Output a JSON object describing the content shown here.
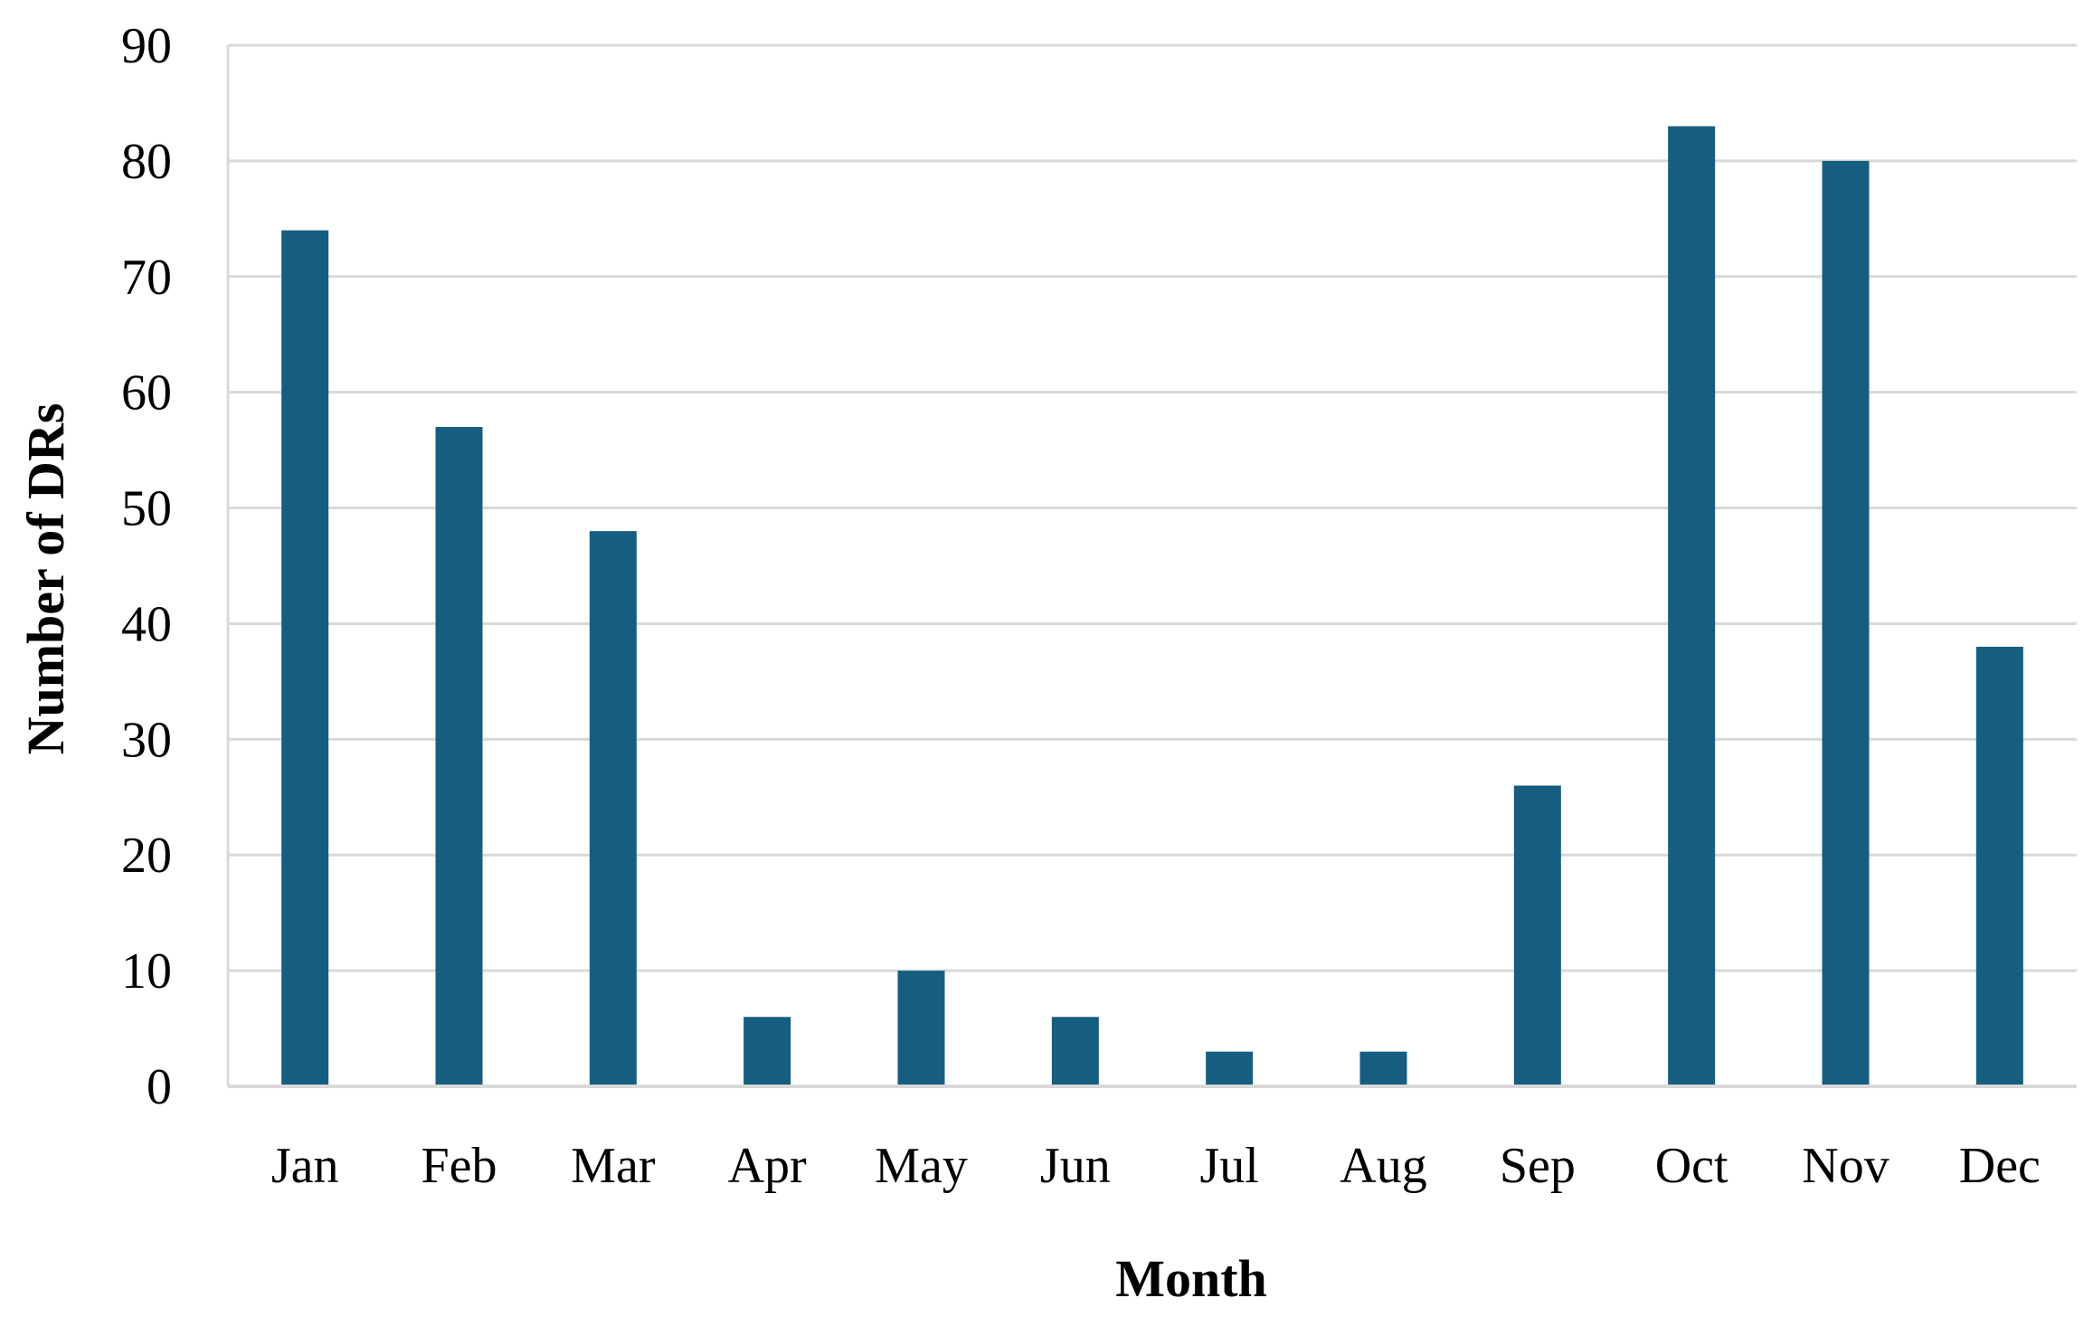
{
  "chart_data": {
    "type": "bar",
    "categories": [
      "Jan",
      "Feb",
      "Mar",
      "Apr",
      "May",
      "Jun",
      "Jul",
      "Aug",
      "Sep",
      "Oct",
      "Nov",
      "Dec"
    ],
    "values": [
      74,
      57,
      48,
      6,
      10,
      6,
      3,
      3,
      26,
      83,
      80,
      38
    ],
    "xlabel": "Month",
    "ylabel": "Number of DRs",
    "ylim": [
      0,
      90
    ],
    "yticks": [
      0,
      10,
      20,
      30,
      40,
      50,
      60,
      70,
      80,
      90
    ],
    "grid": true,
    "bar_color": "#165e80",
    "grid_color": "#d9d9d9"
  }
}
